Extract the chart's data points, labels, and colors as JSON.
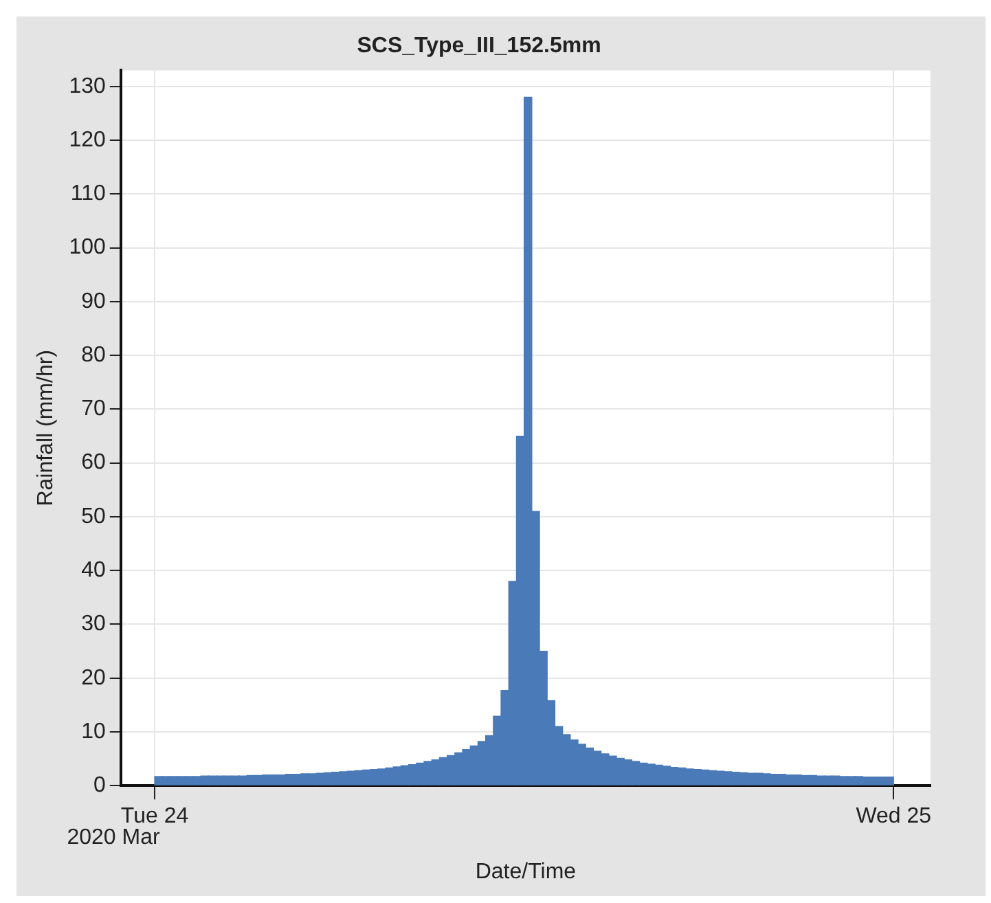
{
  "chart_data": {
    "type": "histogram",
    "title": "SCS_Type_III_152.5mm",
    "xlabel": "Date/Time",
    "ylabel": "Rainfall (mm/hr)",
    "annotations": [
      "2020 Mar"
    ],
    "bins": [
      "2020-03-24T00:00",
      "2020-03-24T00:15",
      "2020-03-24T00:30",
      "2020-03-24T00:45",
      "2020-03-24T01:00",
      "2020-03-24T01:15",
      "2020-03-24T01:30",
      "2020-03-24T01:45",
      "2020-03-24T02:00",
      "2020-03-24T02:15",
      "2020-03-24T02:30",
      "2020-03-24T02:45",
      "2020-03-24T03:00",
      "2020-03-24T03:15",
      "2020-03-24T03:30",
      "2020-03-24T03:45",
      "2020-03-24T04:00",
      "2020-03-24T04:15",
      "2020-03-24T04:30",
      "2020-03-24T04:45",
      "2020-03-24T05:00",
      "2020-03-24T05:15",
      "2020-03-24T05:30",
      "2020-03-24T05:45",
      "2020-03-24T06:00",
      "2020-03-24T06:15",
      "2020-03-24T06:30",
      "2020-03-24T06:45",
      "2020-03-24T07:00",
      "2020-03-24T07:15",
      "2020-03-24T07:30",
      "2020-03-24T07:45",
      "2020-03-24T08:00",
      "2020-03-24T08:15",
      "2020-03-24T08:30",
      "2020-03-24T08:45",
      "2020-03-24T09:00",
      "2020-03-24T09:15",
      "2020-03-24T09:30",
      "2020-03-24T09:45",
      "2020-03-24T10:00",
      "2020-03-24T10:15",
      "2020-03-24T10:30",
      "2020-03-24T10:45",
      "2020-03-24T11:00",
      "2020-03-24T11:15",
      "2020-03-24T11:30",
      "2020-03-24T11:45",
      "2020-03-24T12:00",
      "2020-03-24T12:15",
      "2020-03-24T12:30",
      "2020-03-24T12:45",
      "2020-03-24T13:00",
      "2020-03-24T13:15",
      "2020-03-24T13:30",
      "2020-03-24T13:45",
      "2020-03-24T14:00",
      "2020-03-24T14:15",
      "2020-03-24T14:30",
      "2020-03-24T14:45",
      "2020-03-24T15:00",
      "2020-03-24T15:15",
      "2020-03-24T15:30",
      "2020-03-24T15:45",
      "2020-03-24T16:00",
      "2020-03-24T16:15",
      "2020-03-24T16:30",
      "2020-03-24T16:45",
      "2020-03-24T17:00",
      "2020-03-24T17:15",
      "2020-03-24T17:30",
      "2020-03-24T17:45",
      "2020-03-24T18:00",
      "2020-03-24T18:15",
      "2020-03-24T18:30",
      "2020-03-24T18:45",
      "2020-03-24T19:00",
      "2020-03-24T19:15",
      "2020-03-24T19:30",
      "2020-03-24T19:45",
      "2020-03-24T20:00",
      "2020-03-24T20:15",
      "2020-03-24T20:30",
      "2020-03-24T20:45",
      "2020-03-24T21:00",
      "2020-03-24T21:15",
      "2020-03-24T21:30",
      "2020-03-24T21:45",
      "2020-03-24T22:00",
      "2020-03-24T22:15",
      "2020-03-24T22:30",
      "2020-03-24T22:45",
      "2020-03-24T23:00",
      "2020-03-24T23:15",
      "2020-03-24T23:30",
      "2020-03-24T23:45",
      "2020-03-25T00:00"
    ],
    "values": [
      1.7,
      1.7,
      1.7,
      1.7,
      1.7,
      1.7,
      1.8,
      1.8,
      1.8,
      1.8,
      1.8,
      1.8,
      1.9,
      1.9,
      2.0,
      2.0,
      2.0,
      2.1,
      2.1,
      2.2,
      2.2,
      2.3,
      2.4,
      2.5,
      2.6,
      2.7,
      2.8,
      2.9,
      3.0,
      3.1,
      3.3,
      3.5,
      3.7,
      3.9,
      4.2,
      4.5,
      4.8,
      5.2,
      5.6,
      6.1,
      6.7,
      7.4,
      8.2,
      9.3,
      12.9,
      17.7,
      38,
      65,
      128,
      51,
      25,
      15.8,
      11,
      9.5,
      8.5,
      7.7,
      7.0,
      6.4,
      5.9,
      5.5,
      5.1,
      4.8,
      4.5,
      4.2,
      4.0,
      3.8,
      3.6,
      3.4,
      3.3,
      3.1,
      3.0,
      2.9,
      2.8,
      2.7,
      2.6,
      2.5,
      2.4,
      2.3,
      2.3,
      2.2,
      2.1,
      2.1,
      2.0,
      2.0,
      1.9,
      1.9,
      1.8,
      1.8,
      1.8,
      1.7,
      1.7,
      1.7,
      1.6,
      1.6,
      1.6,
      1.6
    ],
    "color": "#4a7ab8",
    "xlim": [
      "2020-03-23T22:54",
      "2020-03-25T01:12"
    ],
    "xticks": [
      {
        "value": "2020-03-24",
        "label": "Tue 24"
      },
      {
        "value": "2020-03-25",
        "label": "Wed 25"
      }
    ],
    "ylim": [
      0,
      133
    ],
    "yticks": [
      0,
      10,
      20,
      30,
      40,
      50,
      60,
      70,
      80,
      90,
      100,
      110,
      120,
      130
    ],
    "grid": true,
    "legend": false
  }
}
